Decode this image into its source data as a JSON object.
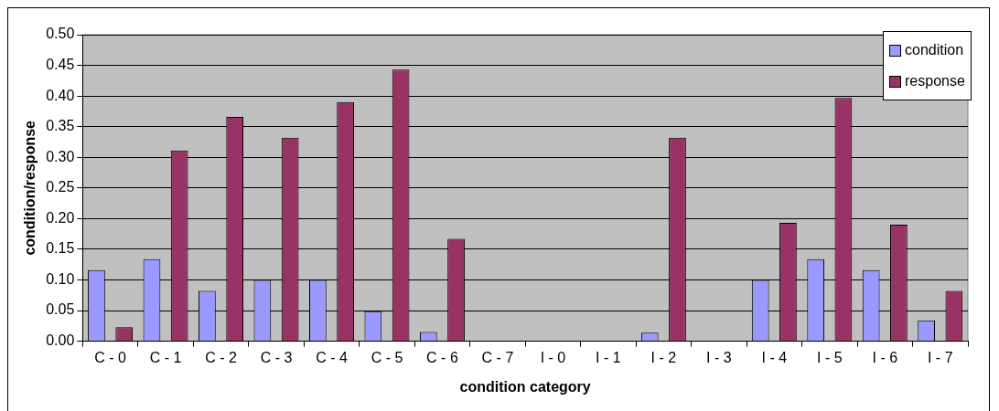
{
  "chart_data": {
    "type": "bar",
    "xlabel": "condition category",
    "ylabel": "condition/response",
    "categories": [
      "C - 0",
      "C - 1",
      "C - 2",
      "C - 3",
      "C - 4",
      "C - 5",
      "C - 6",
      "C - 7",
      "I - 0",
      "I - 1",
      "I - 2",
      "I - 3",
      "I - 4",
      "I - 5",
      "I - 6",
      "I - 7"
    ],
    "series": [
      {
        "name": "condition",
        "color": "#9999ff",
        "values": [
          0.116,
          0.134,
          0.082,
          0.1,
          0.1,
          0.049,
          0.015,
          0,
          0,
          0,
          0.014,
          0,
          0.1,
          0.134,
          0.116,
          0.034
        ]
      },
      {
        "name": "response",
        "color": "#993366",
        "values": [
          0.023,
          0.311,
          0.366,
          0.332,
          0.39,
          0.443,
          0.167,
          0,
          0,
          0,
          0.332,
          0,
          0.193,
          0.397,
          0.19,
          0.082
        ]
      }
    ],
    "ylim": [
      0,
      0.5
    ],
    "yticks": [
      {
        "value": 0,
        "label": "0.00"
      },
      {
        "value": 0.05,
        "label": "0.05"
      },
      {
        "value": 0.1,
        "label": "0.10"
      },
      {
        "value": 0.15,
        "label": "0.15"
      },
      {
        "value": 0.2,
        "label": "0.20"
      },
      {
        "value": 0.25,
        "label": "0.25"
      },
      {
        "value": 0.3,
        "label": "0.30"
      },
      {
        "value": 0.35,
        "label": "0.35"
      },
      {
        "value": 0.4,
        "label": "0.40"
      },
      {
        "value": 0.45,
        "label": "0.45"
      },
      {
        "value": 0.5,
        "label": "0.50"
      }
    ],
    "grid": "y",
    "legend": "top right"
  }
}
